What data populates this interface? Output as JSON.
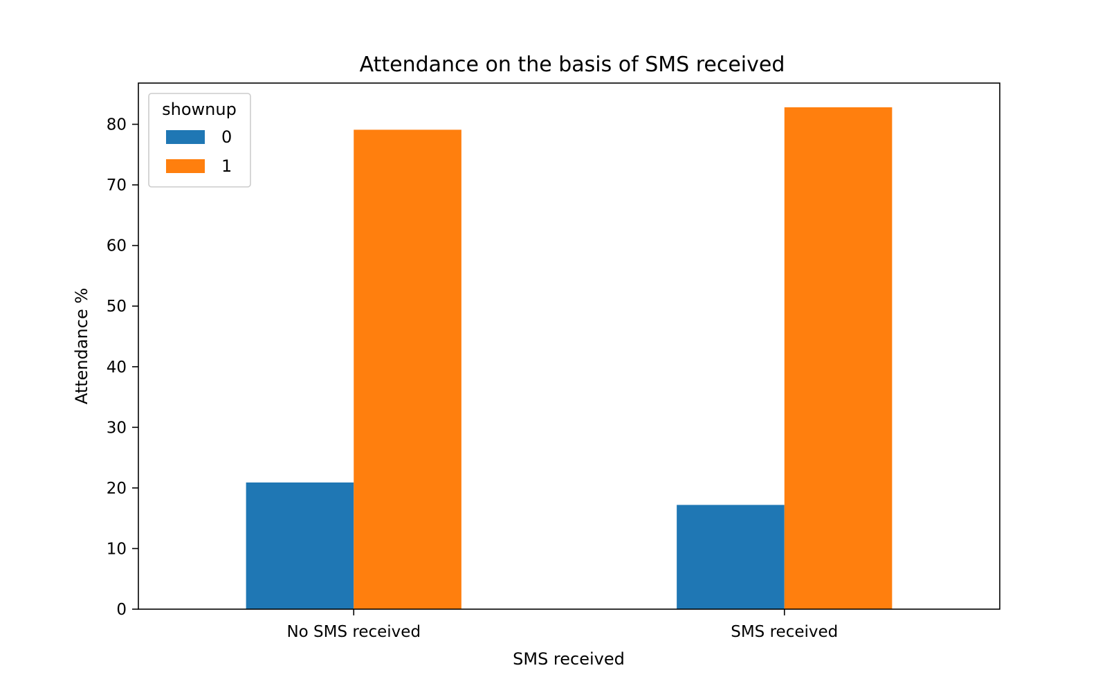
{
  "chart_data": {
    "type": "bar",
    "title": "Attendance on the basis of SMS received",
    "xlabel": "SMS received",
    "ylabel": "Attendance %",
    "categories": [
      "No SMS received",
      "SMS received"
    ],
    "series": [
      {
        "name": "0",
        "values": [
          20.9,
          17.2
        ],
        "color": "#1f77b4"
      },
      {
        "name": "1",
        "values": [
          79.1,
          82.8
        ],
        "color": "#ff7f0e"
      }
    ],
    "ylim": [
      0,
      86.8
    ],
    "yticks": [
      0,
      10,
      20,
      30,
      40,
      50,
      60,
      70,
      80
    ],
    "grid": false,
    "legend": {
      "title": "shownup",
      "placement": "upper-left"
    }
  }
}
